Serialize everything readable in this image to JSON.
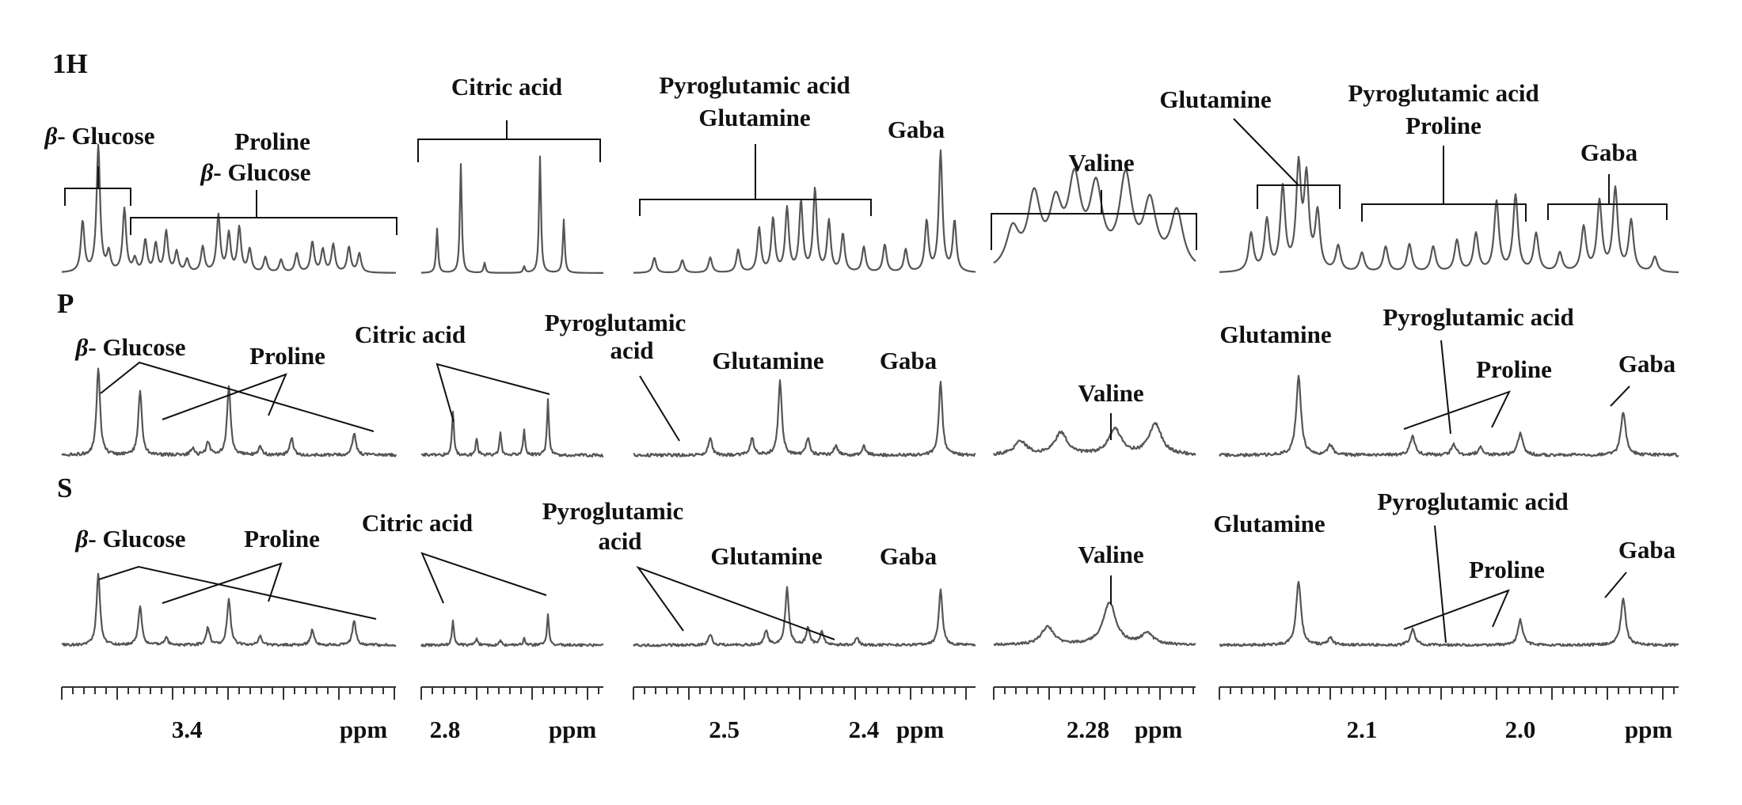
{
  "chart_data": {
    "type": "line",
    "title": "",
    "row_labels": [
      "1H",
      "P",
      "S"
    ],
    "x_unit": "ppm",
    "panels": [
      {
        "xlim": [
          3.52,
          3.2
        ],
        "tick_labels": [
          {
            "value": 3.4,
            "text": "3.4"
          }
        ],
        "unit_label": "ppm",
        "rows": {
          "1H": [
            [
              3.5,
              0.4
            ],
            [
              3.485,
              1.0
            ],
            [
              3.475,
              0.15
            ],
            [
              3.46,
              0.5
            ],
            [
              3.45,
              0.1
            ],
            [
              3.44,
              0.25
            ],
            [
              3.43,
              0.22
            ],
            [
              3.42,
              0.32
            ],
            [
              3.41,
              0.16
            ],
            [
              3.4,
              0.1
            ],
            [
              3.385,
              0.2
            ],
            [
              3.37,
              0.45
            ],
            [
              3.36,
              0.3
            ],
            [
              3.35,
              0.35
            ],
            [
              3.34,
              0.18
            ],
            [
              3.325,
              0.12
            ],
            [
              3.31,
              0.1
            ],
            [
              3.295,
              0.15
            ],
            [
              3.28,
              0.24
            ],
            [
              3.27,
              0.18
            ],
            [
              3.26,
              0.22
            ],
            [
              3.245,
              0.2
            ],
            [
              3.235,
              0.15
            ]
          ],
          "P": [
            [
              3.485,
              1.0
            ],
            [
              3.445,
              0.75
            ],
            [
              3.395,
              0.08
            ],
            [
              3.38,
              0.15
            ],
            [
              3.36,
              0.8
            ],
            [
              3.33,
              0.1
            ],
            [
              3.3,
              0.2
            ],
            [
              3.24,
              0.25
            ]
          ],
          "S": [
            [
              3.485,
              1.0
            ],
            [
              3.445,
              0.55
            ],
            [
              3.42,
              0.1
            ],
            [
              3.38,
              0.25
            ],
            [
              3.36,
              0.65
            ],
            [
              3.33,
              0.12
            ],
            [
              3.28,
              0.22
            ],
            [
              3.24,
              0.35
            ]
          ]
        },
        "annotations": {
          "1H": [
            "β- Glucose",
            "Proline",
            "β- Glucose"
          ],
          "P": [
            "β- Glucose",
            "Proline"
          ],
          "S": [
            "β- Glucose",
            "Proline"
          ]
        }
      },
      {
        "xlim": [
          2.83,
          2.6
        ],
        "tick_labels": [
          {
            "value": 2.8,
            "text": "2.8"
          }
        ],
        "unit_label": "ppm",
        "rows": {
          "1H": [
            [
              2.81,
              0.35
            ],
            [
              2.78,
              0.86
            ],
            [
              2.75,
              0.08
            ],
            [
              2.7,
              0.05
            ],
            [
              2.68,
              0.92
            ],
            [
              2.65,
              0.42
            ]
          ],
          "P": [
            [
              2.79,
              0.5
            ],
            [
              2.76,
              0.2
            ],
            [
              2.73,
              0.25
            ],
            [
              2.7,
              0.3
            ],
            [
              2.67,
              0.65
            ]
          ],
          "S": [
            [
              2.79,
              0.35
            ],
            [
              2.76,
              0.1
            ],
            [
              2.73,
              0.08
            ],
            [
              2.7,
              0.1
            ],
            [
              2.67,
              0.45
            ]
          ]
        },
        "annotations": {
          "1H": [
            "Citric acid"
          ],
          "P": [
            "Citric acid"
          ],
          "S": [
            "Citric acid"
          ]
        }
      },
      {
        "xlim": [
          2.565,
          2.32
        ],
        "tick_labels": [
          {
            "value": 2.5,
            "text": "2.5"
          },
          {
            "value": 2.4,
            "text": "2.4"
          }
        ],
        "unit_label": "ppm",
        "rows": {
          "1H": [
            [
              2.55,
              0.12
            ],
            [
              2.53,
              0.1
            ],
            [
              2.51,
              0.12
            ],
            [
              2.49,
              0.18
            ],
            [
              2.475,
              0.35
            ],
            [
              2.465,
              0.42
            ],
            [
              2.455,
              0.5
            ],
            [
              2.445,
              0.55
            ],
            [
              2.435,
              0.65
            ],
            [
              2.425,
              0.4
            ],
            [
              2.415,
              0.3
            ],
            [
              2.4,
              0.2
            ],
            [
              2.385,
              0.22
            ],
            [
              2.37,
              0.18
            ],
            [
              2.355,
              0.4
            ],
            [
              2.345,
              0.95
            ],
            [
              2.335,
              0.4
            ]
          ],
          "P": [
            [
              2.51,
              0.2
            ],
            [
              2.48,
              0.2
            ],
            [
              2.46,
              0.85
            ],
            [
              2.44,
              0.2
            ],
            [
              2.42,
              0.12
            ],
            [
              2.4,
              0.1
            ],
            [
              2.345,
              0.85
            ]
          ],
          "S": [
            [
              2.51,
              0.15
            ],
            [
              2.47,
              0.2
            ],
            [
              2.455,
              0.8
            ],
            [
              2.44,
              0.25
            ],
            [
              2.43,
              0.18
            ],
            [
              2.405,
              0.1
            ],
            [
              2.345,
              0.8
            ]
          ]
        },
        "annotations": {
          "1H": [
            "Pyroglutamic acid",
            "Glutamine",
            "Gaba"
          ],
          "P": [
            "Pyroglutamic acid",
            "Glutamine",
            "Gaba"
          ],
          "S": [
            "Pyroglutamic acid",
            "Glutamine",
            "Gaba"
          ]
        }
      },
      {
        "xlim": [
          2.315,
          2.24
        ],
        "tick_labels": [
          {
            "value": 2.28,
            "text": "2.28"
          }
        ],
        "unit_label": "ppm",
        "rows": {
          "1H": [
            [
              2.308,
              0.3
            ],
            [
              2.3,
              0.55
            ],
            [
              2.292,
              0.45
            ],
            [
              2.285,
              0.65
            ],
            [
              2.277,
              0.6
            ],
            [
              2.266,
              0.7
            ],
            [
              2.257,
              0.5
            ],
            [
              2.247,
              0.45
            ]
          ],
          "P": [
            [
              2.305,
              0.15
            ],
            [
              2.29,
              0.25
            ],
            [
              2.27,
              0.3
            ],
            [
              2.255,
              0.35
            ]
          ],
          "S": [
            [
              2.295,
              0.25
            ],
            [
              2.272,
              0.6
            ],
            [
              2.258,
              0.15
            ]
          ]
        },
        "annotations": {
          "1H": [
            "Valine"
          ],
          "P": [
            "Valine"
          ],
          "S": [
            "Valine"
          ]
        }
      },
      {
        "xlim": [
          2.19,
          1.9
        ],
        "tick_labels": [
          {
            "value": 2.1,
            "text": "2.1"
          },
          {
            "value": 2.0,
            "text": "2.0"
          }
        ],
        "unit_label": "ppm",
        "rows": {
          "1H": [
            [
              2.17,
              0.3
            ],
            [
              2.16,
              0.4
            ],
            [
              2.15,
              0.65
            ],
            [
              2.14,
              0.8
            ],
            [
              2.135,
              0.7
            ],
            [
              2.128,
              0.45
            ],
            [
              2.115,
              0.2
            ],
            [
              2.1,
              0.15
            ],
            [
              2.085,
              0.2
            ],
            [
              2.07,
              0.22
            ],
            [
              2.055,
              0.2
            ],
            [
              2.04,
              0.25
            ],
            [
              2.028,
              0.3
            ],
            [
              2.015,
              0.55
            ],
            [
              2.003,
              0.6
            ],
            [
              1.99,
              0.3
            ],
            [
              1.975,
              0.15
            ],
            [
              1.96,
              0.35
            ],
            [
              1.95,
              0.55
            ],
            [
              1.94,
              0.65
            ],
            [
              1.93,
              0.4
            ],
            [
              1.915,
              0.12
            ]
          ],
          "P": [
            [
              2.14,
              0.9
            ],
            [
              2.12,
              0.12
            ],
            [
              2.068,
              0.22
            ],
            [
              2.042,
              0.12
            ],
            [
              2.025,
              0.1
            ],
            [
              2.0,
              0.25
            ],
            [
              1.935,
              0.5
            ]
          ],
          "S": [
            [
              2.14,
              0.9
            ],
            [
              2.12,
              0.1
            ],
            [
              2.068,
              0.22
            ],
            [
              2.0,
              0.35
            ],
            [
              1.935,
              0.65
            ]
          ]
        },
        "annotations": {
          "1H": [
            "Glutamine",
            "Pyroglutamic acid",
            "Proline",
            "Gaba"
          ],
          "P": [
            "Glutamine",
            "Pyroglutamic acid",
            "Proline",
            "Gaba"
          ],
          "S": [
            "Glutamine",
            "Pyroglutamic acid",
            "Proline",
            "Gaba"
          ]
        }
      }
    ]
  }
}
